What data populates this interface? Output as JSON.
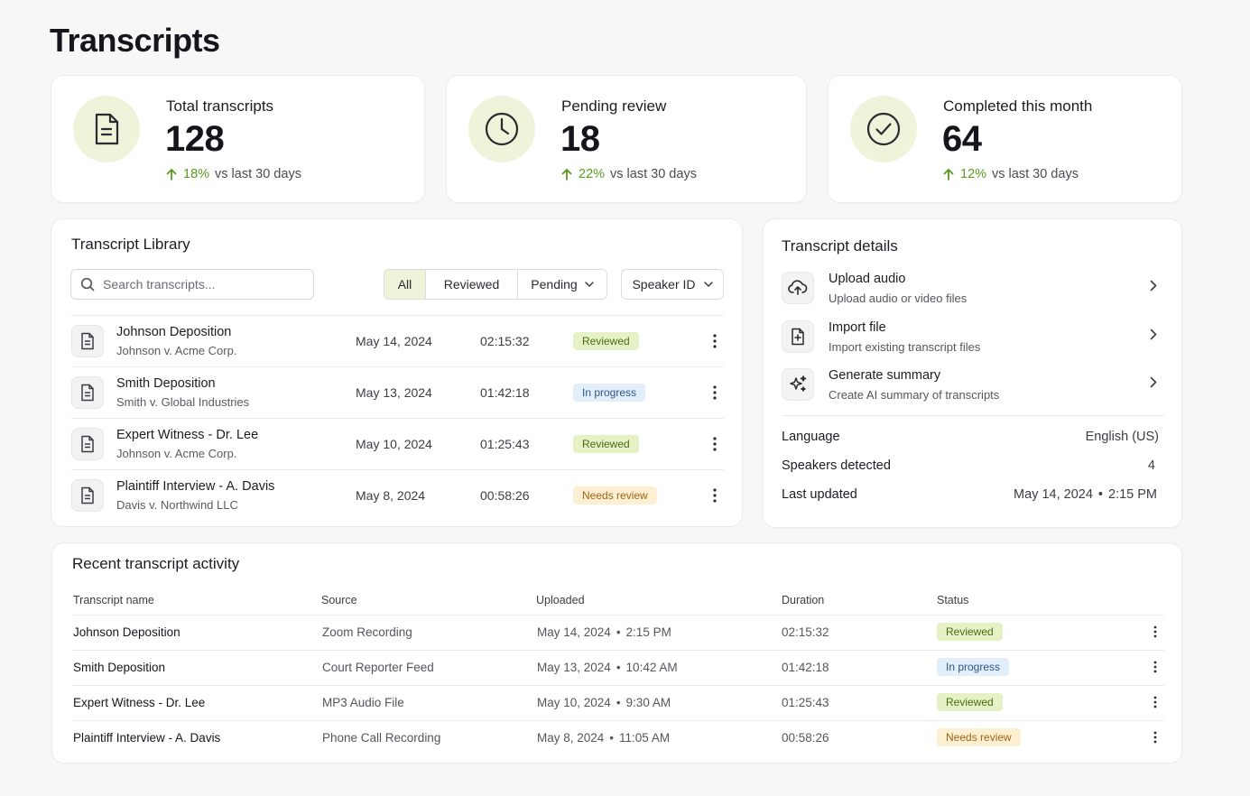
{
  "page": {
    "title": "Transcripts"
  },
  "stats": [
    {
      "label": "Total transcripts",
      "value": "128",
      "change": "18%",
      "period": "vs last 30 days",
      "icon": "document-icon"
    },
    {
      "label": "Pending review",
      "value": "18",
      "change": "22%",
      "period": "vs last 30 days",
      "icon": "clock-icon"
    },
    {
      "label": "Completed this month",
      "value": "64",
      "change": "12%",
      "period": "vs last 30 days",
      "icon": "check-circle-icon"
    }
  ],
  "library": {
    "title": "Transcript Library",
    "search_placeholder": "Search transcripts...",
    "filters": {
      "all": "All",
      "reviewed": "Reviewed",
      "pending": "Pending"
    },
    "speaker_dropdown": "Speaker ID",
    "rows": [
      {
        "name": "Johnson Deposition",
        "case": "Johnson v. Acme Corp.",
        "date": "May 14, 2024",
        "duration": "02:15:32",
        "status": "Reviewed"
      },
      {
        "name": "Smith Deposition",
        "case": "Smith v. Global Industries",
        "date": "May 13, 2024",
        "duration": "01:42:18",
        "status": "In progress"
      },
      {
        "name": "Expert Witness - Dr. Lee",
        "case": "Johnson v. Acme Corp.",
        "date": "May 10, 2024",
        "duration": "01:25:43",
        "status": "Reviewed"
      },
      {
        "name": "Plaintiff Interview - A. Davis",
        "case": "Davis v. Northwind LLC",
        "date": "May 8, 2024",
        "duration": "00:58:26",
        "status": "Needs review"
      }
    ]
  },
  "details": {
    "title": "Transcript details",
    "actions": [
      {
        "title": "Upload audio",
        "subtitle": "Upload audio or video files",
        "icon": "cloud-upload-icon"
      },
      {
        "title": "Import file",
        "subtitle": "Import existing transcript files",
        "icon": "file-import-icon"
      },
      {
        "title": "Generate summary",
        "subtitle": "Create AI summary of transcripts",
        "icon": "sparkle-icon"
      }
    ],
    "language_label": "Language",
    "language_value": "English (US)",
    "speakers_label": "Speakers detected",
    "speakers_value": "4",
    "updated_label": "Last updated",
    "updated_date": "May 14, 2024",
    "updated_time": "2:15 PM"
  },
  "activity": {
    "title": "Recent transcript activity",
    "columns": {
      "name": "Transcript name",
      "source": "Source",
      "uploaded": "Uploaded",
      "duration": "Duration",
      "status": "Status"
    },
    "rows": [
      {
        "name": "Johnson Deposition",
        "source": "Zoom Recording",
        "date": "May 14, 2024",
        "time": "2:15 PM",
        "duration": "02:15:32",
        "status": "Reviewed"
      },
      {
        "name": "Smith Deposition",
        "source": "Court Reporter Feed",
        "date": "May 13, 2024",
        "time": "10:42 AM",
        "duration": "01:42:18",
        "status": "In progress"
      },
      {
        "name": "Expert Witness - Dr. Lee",
        "source": "MP3 Audio File",
        "date": "May 10, 2024",
        "time": "9:30 AM",
        "duration": "01:25:43",
        "status": "Reviewed"
      },
      {
        "name": "Plaintiff Interview - A. Davis",
        "source": "Phone Call Recording",
        "date": "May 8, 2024",
        "time": "11:05 AM",
        "duration": "00:58:26",
        "status": "Needs review"
      }
    ]
  },
  "colors": {
    "accent_bg": "#eef3d9",
    "trend_green": "#5c9a1e",
    "reviewed_bg": "#e6f1c6",
    "progress_bg": "#e2eef9",
    "needs_review_bg": "#fcefd2"
  }
}
